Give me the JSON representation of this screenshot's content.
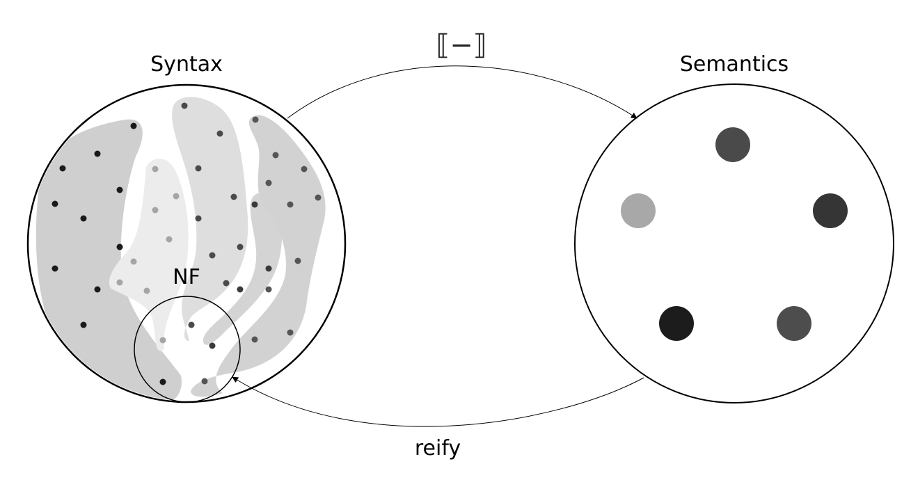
{
  "labels": {
    "syntax": "Syntax",
    "semantics": "Semantics",
    "normal_forms": "NF",
    "interpretation": "⟦−⟧",
    "reify": "reify"
  },
  "colors": {
    "outline": "#000000",
    "region_dark": "#cfcfcf",
    "region_mid": "#dedede",
    "region_light": "#ececec",
    "dot_black": "#1a1a1a",
    "dot_dark": "#444444",
    "dot_grey": "#5a5a5a",
    "dot_light": "#a5a5a5"
  },
  "semantic_values": [
    {
      "name": "value-dark-top",
      "color": "#4a4a4a"
    },
    {
      "name": "value-light-left",
      "color": "#a8a8a8"
    },
    {
      "name": "value-dark-right",
      "color": "#353535"
    },
    {
      "name": "value-black-bottom-left",
      "color": "#1c1c1c"
    },
    {
      "name": "value-grey-bottom-right",
      "color": "#4d4d4d"
    }
  ]
}
